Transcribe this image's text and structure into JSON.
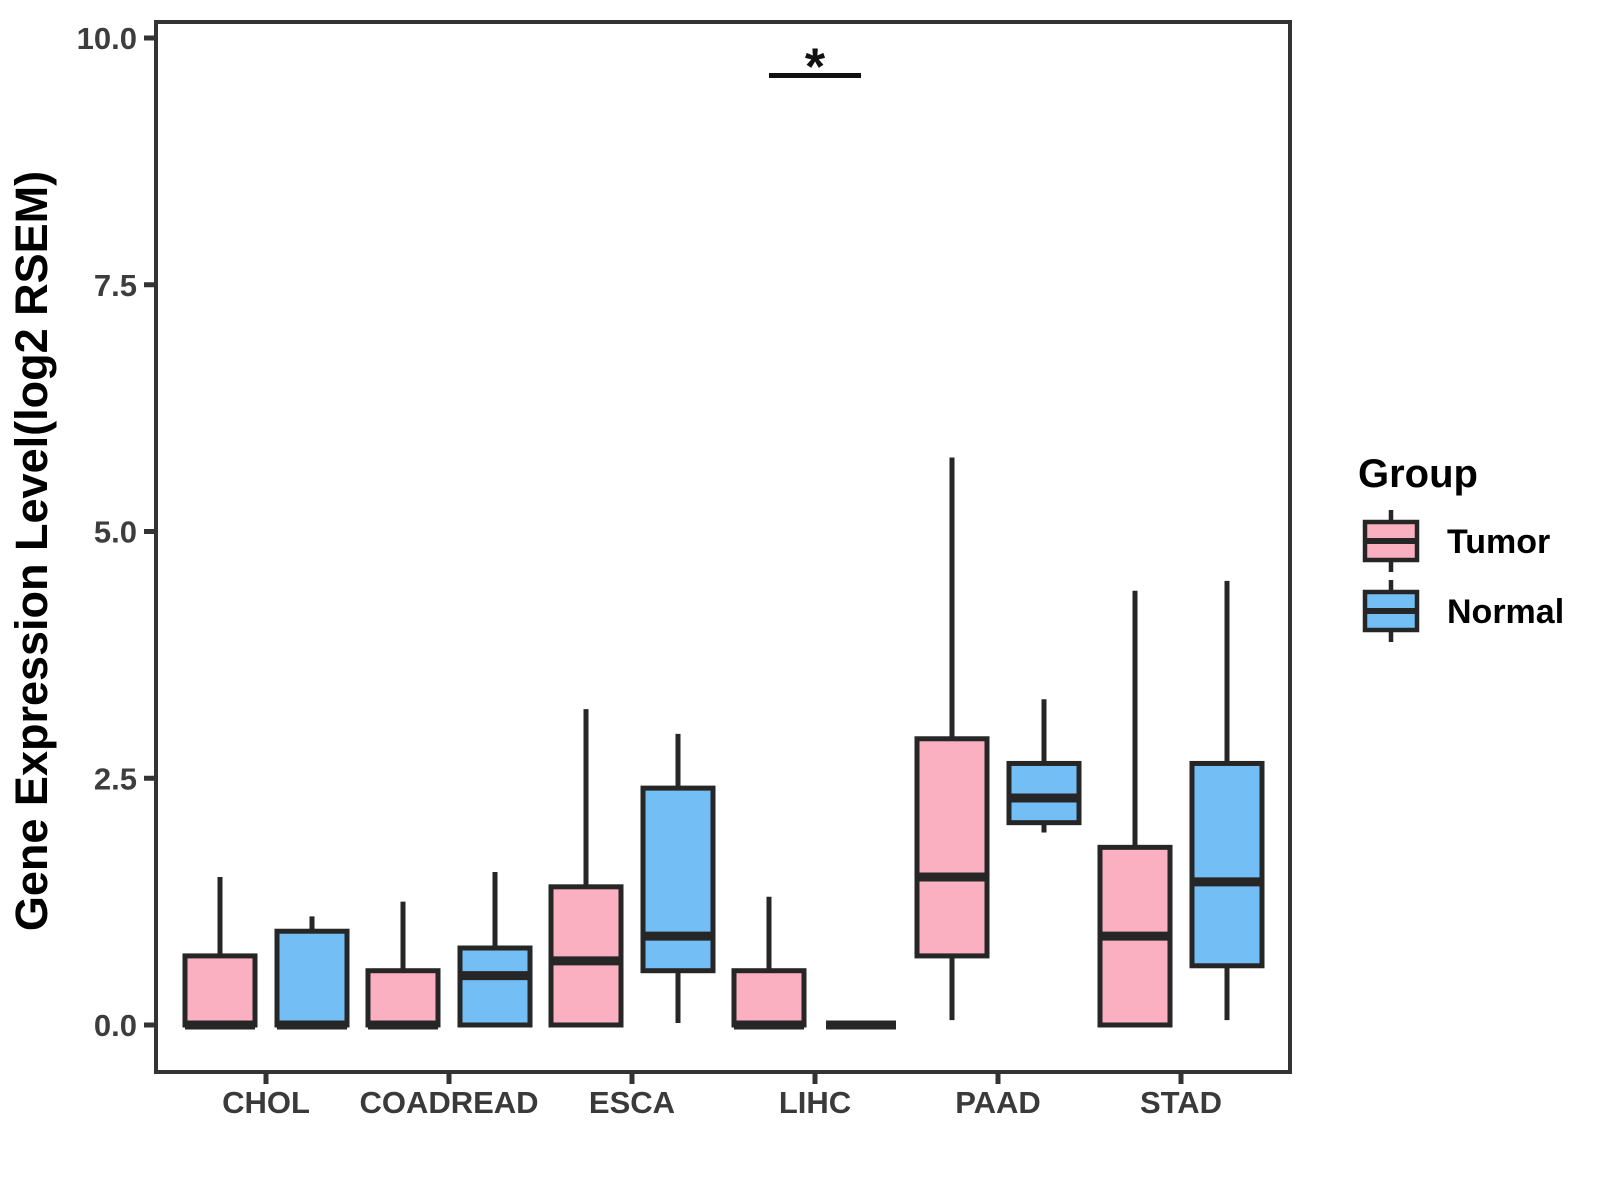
{
  "figure": {
    "background": "#FFFFFF"
  },
  "chart_data": {
    "type": "boxplot",
    "title": "",
    "xlabel": "",
    "ylabel": "Gene Expression Level(log2 RSEM)",
    "ylim": [
      -0.5,
      10.2
    ],
    "yticks": [
      0.0,
      2.5,
      5.0,
      7.5,
      10.0
    ],
    "ytick_labels": [
      "0.0",
      "2.5",
      "5.0",
      "7.5",
      "10.0"
    ],
    "categories": [
      "CHOL",
      "COADREAD",
      "ESCA",
      "LIHC",
      "PAAD",
      "STAD"
    ],
    "grid": false,
    "legend": {
      "title": "Group",
      "position": "right",
      "entries": [
        {
          "label": "Tumor",
          "color": "#FBB0C1"
        },
        {
          "label": "Normal",
          "color": "#73BEF5"
        }
      ]
    },
    "series": [
      {
        "name": "Tumor",
        "color": "#FBB0C1",
        "boxes": [
          {
            "category": "CHOL",
            "whisker_low": 0,
            "q1": 0,
            "median": 0,
            "q3": 0.7,
            "whisker_high": 1.5
          },
          {
            "category": "COADREAD",
            "whisker_low": 0,
            "q1": 0,
            "median": 0,
            "q3": 0.55,
            "whisker_high": 1.25
          },
          {
            "category": "ESCA",
            "whisker_low": 0,
            "q1": 0,
            "median": 0.65,
            "q3": 1.4,
            "whisker_high": 3.2
          },
          {
            "category": "LIHC",
            "whisker_low": 0,
            "q1": 0,
            "median": 0,
            "q3": 0.55,
            "whisker_high": 1.3
          },
          {
            "category": "PAAD",
            "whisker_low": 0.05,
            "q1": 0.7,
            "median": 1.5,
            "q3": 2.9,
            "whisker_high": 5.75
          },
          {
            "category": "STAD",
            "whisker_low": 0,
            "q1": 0,
            "median": 0.9,
            "q3": 1.8,
            "whisker_high": 4.4
          }
        ]
      },
      {
        "name": "Normal",
        "color": "#73BEF5",
        "boxes": [
          {
            "category": "CHOL",
            "whisker_low": 0,
            "q1": 0,
            "median": 0,
            "q3": 0.95,
            "whisker_high": 1.1
          },
          {
            "category": "COADREAD",
            "whisker_low": 0,
            "q1": 0,
            "median": 0.5,
            "q3": 0.78,
            "whisker_high": 1.55
          },
          {
            "category": "ESCA",
            "whisker_low": 0.02,
            "q1": 0.55,
            "median": 0.9,
            "q3": 2.4,
            "whisker_high": 2.95
          },
          {
            "category": "LIHC",
            "whisker_low": 0,
            "q1": 0,
            "median": 0,
            "q3": 0,
            "whisker_high": 0
          },
          {
            "category": "PAAD",
            "whisker_low": 1.95,
            "q1": 2.05,
            "median": 2.3,
            "q3": 2.65,
            "whisker_high": 3.3
          },
          {
            "category": "STAD",
            "whisker_low": 0.05,
            "q1": 0.6,
            "median": 1.45,
            "q3": 2.65,
            "whisker_high": 4.5
          }
        ]
      }
    ],
    "annotations": [
      {
        "type": "significance-bar",
        "category": "LIHC",
        "between": [
          "Tumor",
          "Normal"
        ],
        "label": "*",
        "bar_value": 9.62,
        "label_value": 9.8
      }
    ],
    "style_colors": {
      "box_stroke": "#262626",
      "whisker": "#262626",
      "median": "#262626",
      "panel_border": "#333333",
      "tick": "#333333",
      "tick_label": "#3D3D3D",
      "text": "#000000"
    }
  }
}
